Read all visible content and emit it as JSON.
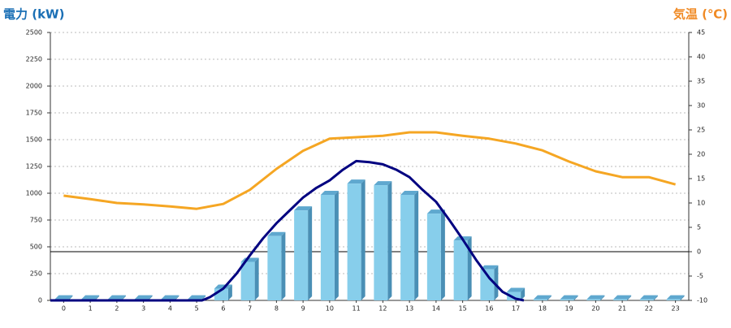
{
  "chart_data": {
    "type": "combo",
    "y_title": "電力 (kW)",
    "y2_title": "気温 (℃)",
    "categories": [
      "0",
      "1",
      "2",
      "3",
      "4",
      "5",
      "6",
      "7",
      "8",
      "9",
      "10",
      "11",
      "12",
      "13",
      "14",
      "15",
      "16",
      "17",
      "18",
      "19",
      "20",
      "21",
      "22",
      "23"
    ],
    "ylim": [
      0,
      2500
    ],
    "yticks": [
      0,
      250,
      500,
      750,
      1000,
      1250,
      1500,
      1750,
      2000,
      2250,
      2500
    ],
    "y2lim": [
      -10,
      45
    ],
    "y2ticks": [
      -10,
      -5,
      0,
      5,
      10,
      15,
      20,
      25,
      30,
      35,
      40,
      45
    ],
    "grid": true,
    "y2_reference_line": 0,
    "series": [
      {
        "type": "bar",
        "color": "#87ceeb",
        "values": [
          10,
          10,
          10,
          10,
          10,
          10,
          110,
          360,
          600,
          840,
          985,
          1090,
          1075,
          985,
          810,
          560,
          290,
          80,
          10,
          10,
          10,
          10,
          10,
          10
        ]
      },
      {
        "type": "line",
        "color": "#000080",
        "x": [
          -0.5,
          5.2,
          5.5,
          6,
          6.5,
          7,
          7.5,
          8,
          8.5,
          9,
          9.5,
          10,
          10.5,
          11,
          11.5,
          12,
          12.5,
          13,
          13.5,
          14,
          14.5,
          15,
          15.5,
          16,
          16.5,
          17,
          17.3
        ],
        "values": [
          0,
          0,
          30,
          110,
          250,
          420,
          580,
          720,
          840,
          960,
          1050,
          1120,
          1220,
          1300,
          1290,
          1270,
          1220,
          1150,
          1030,
          920,
          750,
          570,
          380,
          210,
          80,
          15,
          0
        ]
      },
      {
        "type": "line",
        "axis": "y2",
        "color": "#f5a623",
        "values": [
          11.5,
          10.8,
          10,
          9.7,
          9.3,
          8.8,
          9.8,
          12.7,
          17,
          20.7,
          23.2,
          23.5,
          23.8,
          24.5,
          24.5,
          23.8,
          23.2,
          22.2,
          20.8,
          18.5,
          16.5,
          15.3,
          15.3,
          13.8
        ]
      }
    ]
  }
}
